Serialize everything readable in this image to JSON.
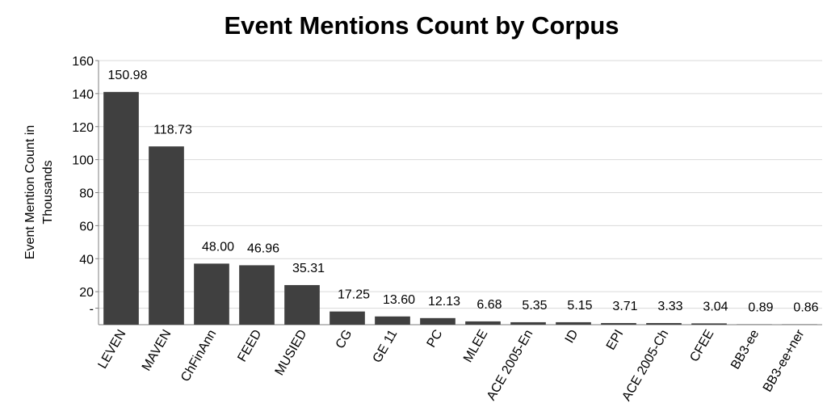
{
  "chart_data": {
    "type": "bar",
    "title": "Event Mentions Count by Corpus",
    "ylabel_lines": [
      "Event Mention Count in",
      "Thousands"
    ],
    "xlabel": "",
    "ylim": [
      0,
      160
    ],
    "yticks": [
      {
        "value": 10,
        "label": "-"
      },
      {
        "value": 20,
        "label": "20"
      },
      {
        "value": 40,
        "label": "40"
      },
      {
        "value": 60,
        "label": "60"
      },
      {
        "value": 80,
        "label": "80"
      },
      {
        "value": 100,
        "label": "100"
      },
      {
        "value": 120,
        "label": "120"
      },
      {
        "value": 140,
        "label": "140"
      },
      {
        "value": 160,
        "label": "160"
      }
    ],
    "grid": true,
    "categories": [
      "LEVEN",
      "MAVEN",
      "ChFinAnn",
      "FEED",
      "MUSIED",
      "CG",
      "GE 11",
      "PC",
      "MLEE",
      "ACE 2005-En",
      "ID",
      "EPI",
      "ACE 2005-Ch",
      "CFEE",
      "BB3-ee",
      "BB3-ee+ner"
    ],
    "values": [
      150.98,
      118.73,
      48.0,
      46.96,
      35.31,
      17.25,
      13.6,
      12.13,
      6.68,
      5.35,
      5.15,
      3.71,
      3.33,
      3.04,
      0.89,
      0.86
    ],
    "bar_heights": [
      141,
      108,
      37,
      36,
      24,
      8,
      5,
      4,
      2,
      1.5,
      1.5,
      1,
      1,
      0.8,
      0.2,
      0.2
    ],
    "data_labels": [
      "150.98",
      "118.73",
      "48.00",
      "46.96",
      "35.31",
      "17.25",
      "13.60",
      "12.13",
      "6.68",
      "5.35",
      "5.15",
      "3.71",
      "3.33",
      "3.04",
      "0.89",
      "0.86"
    ],
    "bar_color": "#404040"
  }
}
